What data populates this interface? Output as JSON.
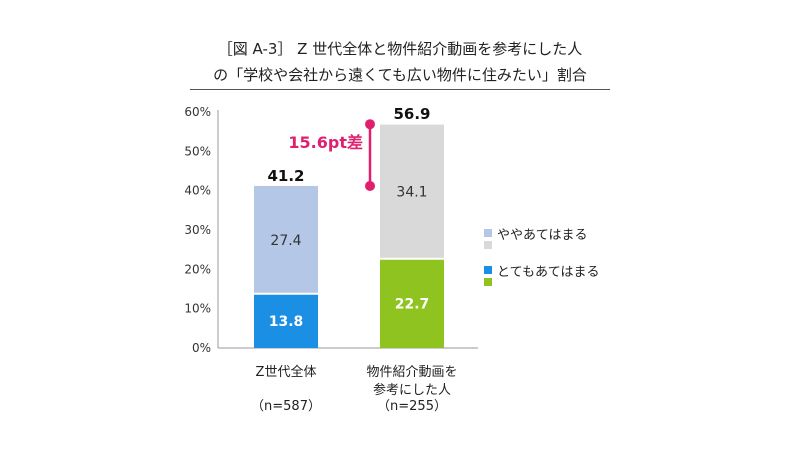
{
  "title_line1": "［図 A-3］ Z 世代全体と物件紹介動画を参考にした人",
  "title_line2": "の「学校や会社から遠くても広い物件に住みたい」割合",
  "colors": {
    "z_yaya": "#b4c7e7",
    "z_totemo": "#1a8fe3",
    "v_yaya": "#d9d9d9",
    "v_totemo": "#8fc31f",
    "accent": "#e0206e",
    "axis": "#999999"
  },
  "legend": {
    "yaya": "ややあてはまる",
    "totemo": "とてもあてはまる"
  },
  "chart_data": {
    "type": "bar",
    "stacked": true,
    "ylim": [
      0,
      60
    ],
    "ytick_labels": [
      "0%",
      "10%",
      "20%",
      "30%",
      "40%",
      "50%",
      "60%"
    ],
    "categories": [
      {
        "lines": [
          "Z世代全体"
        ],
        "n": "（n=587）",
        "totemo": 13.8,
        "yaya": 27.4,
        "total": 41.2,
        "totemo_label": "13.8",
        "yaya_label": "27.4",
        "total_label": "41.2"
      },
      {
        "lines": [
          "物件紹介動画を",
          "参考にした人"
        ],
        "n": "（n=255）",
        "totemo": 22.7,
        "yaya": 34.1,
        "total": 56.9,
        "totemo_label": "22.7",
        "yaya_label": "34.1",
        "total_label": "56.9"
      }
    ],
    "annotation": {
      "text": "15.6pt差",
      "from": 41.2,
      "to": 56.9
    }
  }
}
